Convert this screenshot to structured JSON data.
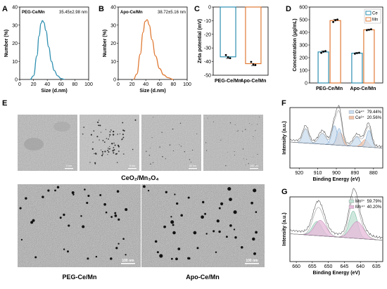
{
  "panel_letters": {
    "A": "A",
    "B": "B",
    "C": "C",
    "D": "D",
    "E": "E",
    "F": "F",
    "G": "G"
  },
  "chart_data": [
    {
      "id": "A",
      "type": "line",
      "title": "PEG-Ce/Mn",
      "annotation": "35.45±2.98 nm",
      "xlabel": "Size (d.nm)",
      "ylabel": "Number (%)",
      "xlim": [
        0,
        100
      ],
      "ylim": [
        0,
        40
      ],
      "xticks": [
        0,
        20,
        40,
        60,
        80,
        100
      ],
      "yticks": [
        0,
        10,
        20,
        30,
        40
      ],
      "color": "#2e8fb0",
      "x": [
        15,
        20,
        25,
        28,
        31,
        33,
        35,
        38,
        42,
        46,
        50,
        55,
        60,
        65
      ],
      "y": [
        0,
        2,
        13,
        24,
        31,
        32.5,
        31.5,
        27,
        18,
        10,
        5,
        2,
        0.5,
        0
      ]
    },
    {
      "id": "B",
      "type": "line",
      "title": "Apo-Ce/Mn",
      "annotation": "38.72±5.16 nm",
      "xlabel": "Size (d.nm)",
      "ylabel": "Number (%)",
      "xlim": [
        0,
        100
      ],
      "ylim": [
        0,
        40
      ],
      "xticks": [
        0,
        20,
        40,
        60,
        80,
        100
      ],
      "yticks": [
        0,
        10,
        20,
        30,
        40
      ],
      "color": "#e07a35",
      "x": [
        22,
        27,
        32,
        36,
        39,
        42,
        45,
        49,
        54,
        60,
        66,
        72,
        80
      ],
      "y": [
        0,
        3,
        14,
        26,
        32,
        33,
        30,
        22,
        13,
        6,
        2.5,
        1,
        0
      ]
    },
    {
      "id": "C",
      "type": "bar",
      "xlabel": "",
      "ylabel": "Zeta potential (mV)",
      "ylim": [
        -50,
        0
      ],
      "yticks": [
        0,
        -10,
        -20,
        -30,
        -40,
        -50
      ],
      "categories": [
        "PEG-Ce/Mn",
        "Apo-Ce/Mn"
      ],
      "values": [
        -36.5,
        -41.5
      ],
      "errors": [
        1.2,
        1.5
      ],
      "colors": [
        "#2e8fb0",
        "#e07a35"
      ],
      "points": [
        [
          -35.2,
          -36.8,
          -37.5
        ],
        [
          -40.2,
          -42.0,
          -42.5
        ]
      ]
    },
    {
      "id": "D",
      "type": "bar",
      "xlabel": "",
      "ylabel": "Concentration (μg/mL)",
      "ylim": [
        0,
        600
      ],
      "yticks": [
        0,
        100,
        200,
        300,
        400,
        500,
        600
      ],
      "categories": [
        "PEG-Ce/Mn",
        "Apo-Ce/Mn"
      ],
      "legend_placement": "top-right",
      "series": [
        {
          "name": "Ce",
          "color": "#2e8fb0",
          "values": [
            245,
            235
          ],
          "errors": [
            8,
            5
          ],
          "points": [
            [
              238,
              247,
              252
            ],
            [
              231,
              236,
              239
            ]
          ]
        },
        {
          "name": "Mn",
          "color": "#e07a35",
          "values": [
            493,
            420
          ],
          "errors": [
            10,
            4
          ],
          "points": [
            [
              482,
              495,
              501
            ],
            [
              417,
              420,
              424
            ]
          ]
        }
      ]
    },
    {
      "id": "F",
      "type": "line",
      "xlabel": "Binding Energy (eV)",
      "ylabel": "Intensity (a.u.)",
      "xlim": [
        925,
        875
      ],
      "xticks": [
        920,
        910,
        900,
        890,
        880
      ],
      "x_reversed": true,
      "legend": [
        {
          "name": "Ce⁴⁺",
          "value": "79.44%",
          "color": "#c9dcef"
        },
        {
          "name": "Ce³⁺",
          "value": "20.56%",
          "color": "#f2c2a7"
        }
      ]
    },
    {
      "id": "G",
      "type": "line",
      "xlabel": "Binding Energy (eV)",
      "ylabel": "Intensity (a.u.)",
      "xlim": [
        662,
        633
      ],
      "xticks": [
        660,
        655,
        650,
        645,
        640,
        635
      ],
      "x_reversed": true,
      "legend": [
        {
          "name": "Mn³⁺",
          "value": "59.79%",
          "color": "#bfe0d3"
        },
        {
          "name": "Mn⁴⁺",
          "value": "40.20%",
          "color": "#e6b9d9"
        }
      ]
    }
  ],
  "tem": {
    "top_caption": "CeO₂/Mn₃O₄",
    "bottom_left_caption": "PEG-Ce/Mn",
    "bottom_right_caption": "Apo-Ce/Mn",
    "scale_top": [
      "2 nm",
      "5 nm",
      "50 nm",
      "100 nm"
    ],
    "scale_bottom": [
      "100 nm",
      "100 nm"
    ]
  }
}
